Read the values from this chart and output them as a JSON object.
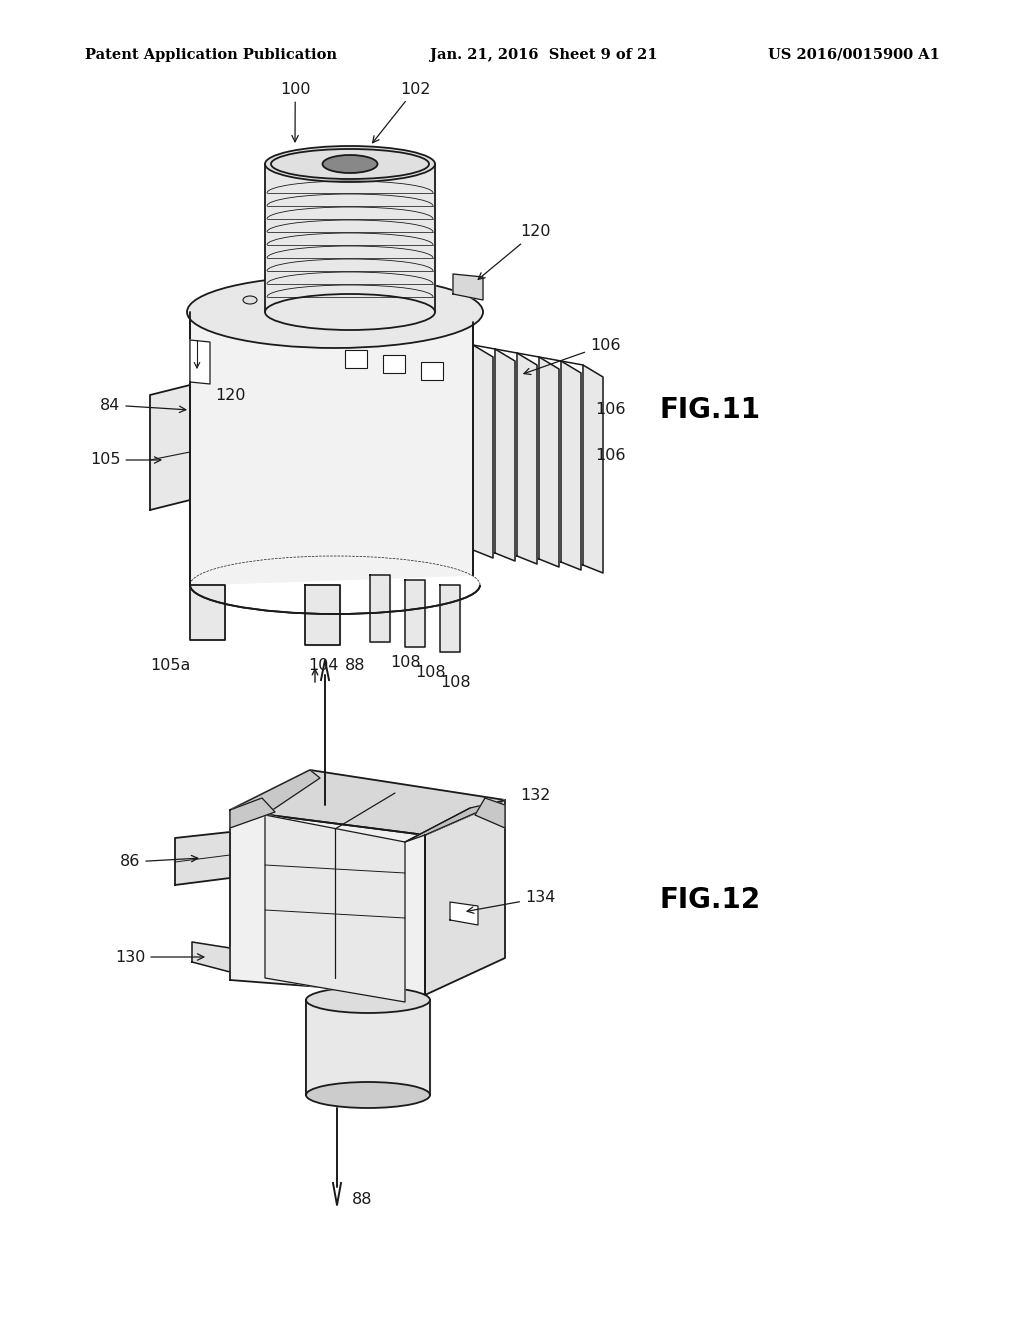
{
  "background_color": "#ffffff",
  "header": {
    "left": "Patent Application Publication",
    "center": "Jan. 21, 2016  Sheet 9 of 21",
    "right": "US 2016/0015900 A1",
    "fontsize": 10.5
  },
  "fig11_label": "FIG.11",
  "fig12_label": "FIG.12",
  "fig_label_fontsize": 20,
  "annotation_fontsize": 11.5,
  "line_color": "#1a1a1a",
  "line_width": 1.3
}
